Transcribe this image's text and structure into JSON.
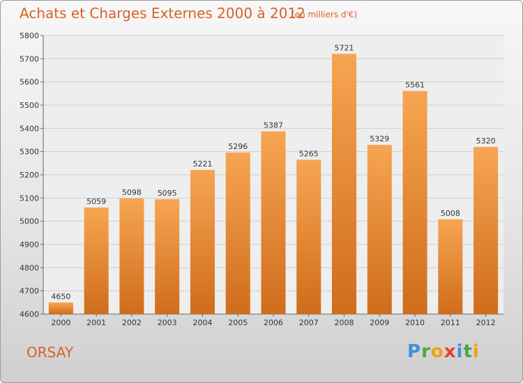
{
  "header": {
    "title": "Achats et Charges Externes 2000 à 2012",
    "subtitle": "(en milliers d'€)"
  },
  "footer": {
    "city": "ORSAY",
    "logo_letters": [
      {
        "char": "P",
        "color": "#3f8fd8"
      },
      {
        "char": "r",
        "color": "#49a845"
      },
      {
        "char": "o",
        "color": "#f2a20f"
      },
      {
        "char": "x",
        "color": "#e4422c"
      },
      {
        "char": "i",
        "color": "#3f8fd8"
      },
      {
        "char": "t",
        "color": "#49a845"
      },
      {
        "char": "i",
        "color": "#f2a20f"
      }
    ]
  },
  "colors": {
    "bar_light": "#f7a552",
    "bar_dark": "#cf6d1b",
    "accent": "#d8612a",
    "grid": "#cfcfcf"
  },
  "chart_data": {
    "type": "bar",
    "title": "Achats et Charges Externes 2000 à 2012",
    "subtitle": "(en milliers d'€)",
    "categories": [
      "2000",
      "2001",
      "2002",
      "2003",
      "2004",
      "2005",
      "2006",
      "2007",
      "2008",
      "2009",
      "2010",
      "2011",
      "2012"
    ],
    "values": [
      4650,
      5059,
      5098,
      5095,
      5221,
      5296,
      5387,
      5265,
      5721,
      5329,
      5561,
      5008,
      5320
    ],
    "ylim": [
      4600,
      5800
    ],
    "yticks": [
      4600,
      4700,
      4800,
      4900,
      5000,
      5100,
      5200,
      5300,
      5400,
      5500,
      5600,
      5700,
      5800
    ],
    "grid": true,
    "data_labels": true
  }
}
